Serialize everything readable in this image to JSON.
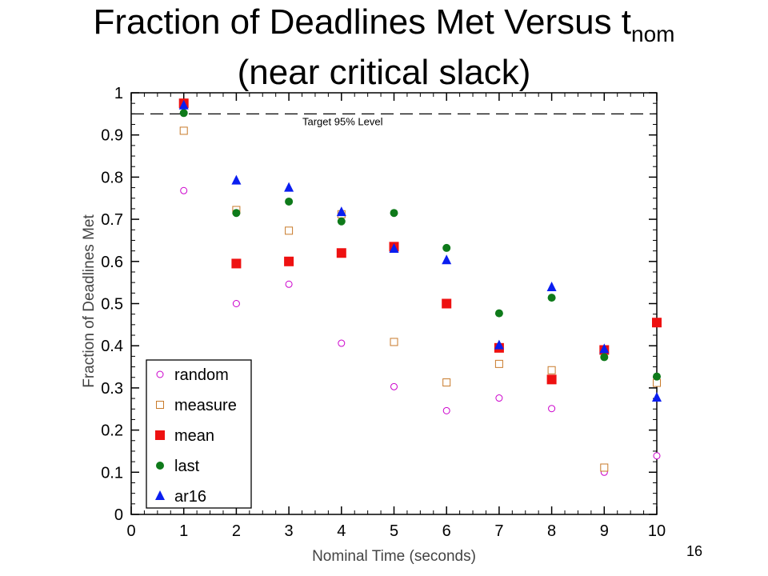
{
  "slide": {
    "title_main": "Fraction of Deadlines Met Versus t",
    "title_sub": "nom",
    "title_line2": "(near critical slack)",
    "page_number": "16"
  },
  "chart_data": {
    "type": "scatter",
    "title": "",
    "xlabel": "Nominal Time (seconds)",
    "ylabel": "Fraction of Deadlines Met",
    "xlim": [
      0,
      10
    ],
    "ylim": [
      0,
      1
    ],
    "xticks": [
      "0",
      "1",
      "2",
      "3",
      "4",
      "5",
      "6",
      "7",
      "8",
      "9",
      "10"
    ],
    "yticks": [
      "0",
      "0.1",
      "0.2",
      "0.3",
      "0.4",
      "0.5",
      "0.6",
      "0.7",
      "0.8",
      "0.9",
      "1"
    ],
    "grid": false,
    "legend_position": "bottom-left",
    "reference_line": {
      "y": 0.95,
      "label": "Target 95% Level",
      "style": "dashed"
    },
    "series": [
      {
        "name": "random",
        "marker": "open-circle",
        "color": "#cc00cc",
        "x": [
          1,
          2,
          3,
          4,
          5,
          6,
          7,
          8,
          9,
          10
        ],
        "y": [
          0.768,
          0.5,
          0.546,
          0.406,
          0.303,
          0.246,
          0.276,
          0.251,
          0.1,
          0.139
        ]
      },
      {
        "name": "measure",
        "marker": "open-square",
        "color": "#c87a2a",
        "x": [
          1,
          2,
          3,
          4,
          5,
          6,
          7,
          8,
          9,
          10
        ],
        "y": [
          0.91,
          0.722,
          0.673,
          0.712,
          0.409,
          0.313,
          0.357,
          0.342,
          0.111,
          0.312
        ]
      },
      {
        "name": "mean",
        "marker": "filled-square",
        "color": "#ee1111",
        "x": [
          1,
          2,
          3,
          4,
          5,
          6,
          7,
          8,
          9,
          10
        ],
        "y": [
          0.975,
          0.595,
          0.6,
          0.62,
          0.635,
          0.5,
          0.395,
          0.32,
          0.39,
          0.455
        ]
      },
      {
        "name": "last",
        "marker": "filled-circle",
        "color": "#0e7a1a",
        "x": [
          1,
          2,
          3,
          4,
          5,
          6,
          7,
          8,
          9,
          10
        ],
        "y": [
          0.952,
          0.715,
          0.742,
          0.695,
          0.715,
          0.632,
          0.477,
          0.514,
          0.373,
          0.327
        ]
      },
      {
        "name": "ar16",
        "marker": "filled-triangle",
        "color": "#0a1ef0",
        "x": [
          1,
          2,
          3,
          4,
          5,
          6,
          7,
          8,
          9,
          10
        ],
        "y": [
          0.97,
          0.792,
          0.775,
          0.717,
          0.63,
          0.603,
          0.401,
          0.539,
          0.392,
          0.277
        ]
      }
    ]
  }
}
